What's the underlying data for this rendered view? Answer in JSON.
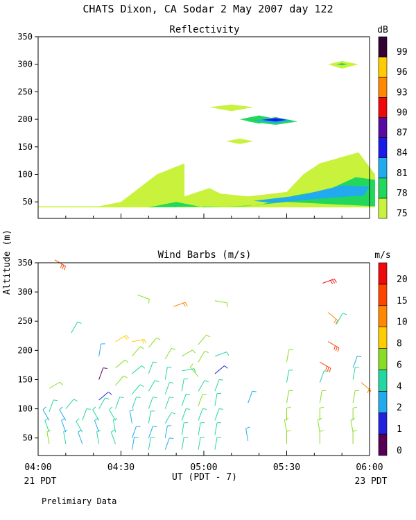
{
  "header": {
    "title": "CHATS Dixon, CA  Sodar   2 May 2007  day 122",
    "footer_note": "Prelimiary Data",
    "left_time_note": "21 PDT",
    "right_time_note": "23 PDT",
    "x_axis_title": "UT  (PDT - 7)",
    "y_axis_title": "Altitude (m)"
  },
  "chart_data": [
    {
      "type": "contour",
      "title": "Reflectivity",
      "xlabel": "UT  (PDT - 7)",
      "ylabel": "Altitude (m)",
      "x_range_utc_minutes": [
        240,
        360
      ],
      "ylim": [
        20,
        350
      ],
      "y_ticks": [
        50,
        100,
        150,
        200,
        250,
        300,
        350
      ],
      "colorbar": {
        "label": "dB",
        "levels": [
          75,
          78,
          81,
          84,
          87,
          90,
          93,
          96,
          99
        ],
        "colors": [
          "#c8f23c",
          "#22d85c",
          "#22aaee",
          "#1a1ae6",
          "#5a0aa0",
          "#ee0a0a",
          "#ff8800",
          "#ffcc00",
          "#330033"
        ]
      },
      "regions": [
        {
          "level": 75,
          "points": [
            [
              240,
              42
            ],
            [
              262,
              42
            ],
            [
              270,
              50
            ],
            [
              283,
              100
            ],
            [
              293,
              120
            ],
            [
              293,
              60
            ],
            [
              302,
              75
            ],
            [
              306,
              65
            ],
            [
              316,
              60
            ],
            [
              330,
              68
            ],
            [
              336,
              100
            ],
            [
              342,
              120
            ],
            [
              356,
              140
            ],
            [
              362,
              100
            ],
            [
              362,
              40
            ],
            [
              300,
              40
            ],
            [
              240,
              40
            ]
          ]
        },
        {
          "level": 78,
          "points": [
            [
              280,
              40
            ],
            [
              290,
              50
            ],
            [
              300,
              40
            ],
            [
              320,
              44
            ],
            [
              333,
              62
            ],
            [
              345,
              72
            ],
            [
              355,
              95
            ],
            [
              362,
              90
            ],
            [
              362,
              42
            ],
            [
              350,
              45
            ],
            [
              330,
              50
            ],
            [
              315,
              42
            ]
          ]
        },
        {
          "level": 78,
          "points": [
            [
              313,
              200
            ],
            [
              320,
              192
            ],
            [
              327,
              200
            ],
            [
              320,
              207
            ]
          ]
        },
        {
          "level": 81,
          "points": [
            [
              318,
              52
            ],
            [
              335,
              62
            ],
            [
              350,
              80
            ],
            [
              360,
              78
            ],
            [
              358,
              62
            ],
            [
              340,
              55
            ],
            [
              325,
              48
            ]
          ]
        },
        {
          "level": 78,
          "points": [
            [
              316,
              196
            ],
            [
              326,
              190
            ],
            [
              334,
              196
            ],
            [
              326,
              204
            ]
          ]
        },
        {
          "level": 81,
          "points": [
            [
              318,
              198
            ],
            [
              326,
              193
            ],
            [
              332,
              198
            ],
            [
              326,
              203
            ]
          ]
        },
        {
          "level": 84,
          "points": [
            [
              321,
              199
            ],
            [
              326,
              196
            ],
            [
              330,
              199
            ],
            [
              326,
              202
            ]
          ]
        },
        {
          "level": 75,
          "points": [
            [
              302,
              222
            ],
            [
              310,
              215
            ],
            [
              318,
              222
            ],
            [
              310,
              227
            ]
          ]
        },
        {
          "level": 75,
          "points": [
            [
              308,
              160
            ],
            [
              313,
              155
            ],
            [
              318,
              160
            ],
            [
              313,
              165
            ]
          ]
        },
        {
          "level": 75,
          "points": [
            [
              345,
              300
            ],
            [
              350,
              292
            ],
            [
              356,
              300
            ],
            [
              350,
              306
            ]
          ]
        },
        {
          "level": 78,
          "points": [
            [
              348,
              300
            ],
            [
              350,
              298
            ],
            [
              352,
              300
            ],
            [
              350,
              302
            ]
          ]
        }
      ]
    },
    {
      "type": "wind_barbs",
      "title": "Wind Barbs (m/s)",
      "xlabel": "UT  (PDT - 7)",
      "ylabel": "Altitude (m)",
      "x_ticks": [
        "04:00",
        "04:30",
        "05:00",
        "05:30",
        "06:00"
      ],
      "x_tick_minutes": [
        240,
        270,
        300,
        330,
        360
      ],
      "x_range_utc_minutes": [
        240,
        360
      ],
      "ylim": [
        20,
        350
      ],
      "y_ticks": [
        50,
        100,
        150,
        200,
        250,
        300,
        350
      ],
      "colorbar": {
        "label": "m/s",
        "levels": [
          0,
          1,
          2,
          4,
          6,
          8,
          10,
          15,
          20
        ],
        "colors": [
          "#550055",
          "#2222dd",
          "#22aaee",
          "#22d8a0",
          "#88dd22",
          "#ffcc00",
          "#ff8800",
          "#ff4400",
          "#ee0a0a"
        ]
      },
      "barbs": [
        {
          "t": 244,
          "z": 40,
          "speed": 6,
          "dir": 350
        },
        {
          "t": 244,
          "z": 60,
          "speed": 4,
          "dir": 340
        },
        {
          "t": 244,
          "z": 80,
          "speed": 3,
          "dir": 330
        },
        {
          "t": 244,
          "z": 95,
          "speed": 5,
          "dir": 20
        },
        {
          "t": 244,
          "z": 135,
          "speed": 6,
          "dir": 60
        },
        {
          "t": 246,
          "z": 355,
          "speed": 18,
          "dir": 120
        },
        {
          "t": 250,
          "z": 40,
          "speed": 5,
          "dir": 350
        },
        {
          "t": 250,
          "z": 60,
          "speed": 3,
          "dir": 340
        },
        {
          "t": 250,
          "z": 80,
          "speed": 3,
          "dir": 330
        },
        {
          "t": 250,
          "z": 100,
          "speed": 4,
          "dir": 40
        },
        {
          "t": 252,
          "z": 230,
          "speed": 5,
          "dir": 30
        },
        {
          "t": 256,
          "z": 40,
          "speed": 3,
          "dir": 340
        },
        {
          "t": 256,
          "z": 60,
          "speed": 4,
          "dir": 330
        },
        {
          "t": 256,
          "z": 80,
          "speed": 4,
          "dir": 20
        },
        {
          "t": 262,
          "z": 40,
          "speed": 5,
          "dir": 350
        },
        {
          "t": 262,
          "z": 60,
          "speed": 3,
          "dir": 340
        },
        {
          "t": 262,
          "z": 80,
          "speed": 4,
          "dir": 330
        },
        {
          "t": 262,
          "z": 100,
          "speed": 5,
          "dir": 30
        },
        {
          "t": 262,
          "z": 115,
          "speed": 1,
          "dir": 50
        },
        {
          "t": 262,
          "z": 150,
          "speed": 0.5,
          "dir": 20
        },
        {
          "t": 262,
          "z": 190,
          "speed": 3,
          "dir": 10
        },
        {
          "t": 268,
          "z": 40,
          "speed": 4,
          "dir": 340
        },
        {
          "t": 268,
          "z": 60,
          "speed": 5,
          "dir": 350
        },
        {
          "t": 268,
          "z": 80,
          "speed": 4,
          "dir": 330
        },
        {
          "t": 268,
          "z": 100,
          "speed": 5,
          "dir": 20
        },
        {
          "t": 268,
          "z": 140,
          "speed": 6,
          "dir": 40
        },
        {
          "t": 268,
          "z": 170,
          "speed": 6,
          "dir": 50
        },
        {
          "t": 268,
          "z": 215,
          "speed": 8,
          "dir": 60
        },
        {
          "t": 274,
          "z": 30,
          "speed": 3,
          "dir": 10
        },
        {
          "t": 274,
          "z": 50,
          "speed": 3,
          "dir": 20
        },
        {
          "t": 274,
          "z": 75,
          "speed": 3,
          "dir": 350
        },
        {
          "t": 274,
          "z": 100,
          "speed": 5,
          "dir": 20
        },
        {
          "t": 274,
          "z": 125,
          "speed": 5,
          "dir": 40
        },
        {
          "t": 274,
          "z": 160,
          "speed": 4,
          "dir": 50
        },
        {
          "t": 274,
          "z": 190,
          "speed": 6,
          "dir": 40
        },
        {
          "t": 274,
          "z": 215,
          "speed": 8,
          "dir": 80
        },
        {
          "t": 276,
          "z": 295,
          "speed": 6,
          "dir": 110
        },
        {
          "t": 280,
          "z": 30,
          "speed": 4,
          "dir": 10
        },
        {
          "t": 280,
          "z": 50,
          "speed": 3,
          "dir": 20
        },
        {
          "t": 280,
          "z": 75,
          "speed": 4,
          "dir": 10
        },
        {
          "t": 280,
          "z": 100,
          "speed": 5,
          "dir": 20
        },
        {
          "t": 280,
          "z": 130,
          "speed": 5,
          "dir": 30
        },
        {
          "t": 280,
          "z": 160,
          "speed": 4,
          "dir": 20
        },
        {
          "t": 280,
          "z": 205,
          "speed": 6,
          "dir": 40
        },
        {
          "t": 286,
          "z": 30,
          "speed": 3,
          "dir": 20
        },
        {
          "t": 286,
          "z": 50,
          "speed": 3,
          "dir": 10
        },
        {
          "t": 286,
          "z": 75,
          "speed": 4,
          "dir": 30
        },
        {
          "t": 286,
          "z": 100,
          "speed": 4,
          "dir": 20
        },
        {
          "t": 286,
          "z": 125,
          "speed": 5,
          "dir": 20
        },
        {
          "t": 286,
          "z": 150,
          "speed": 5,
          "dir": 10
        },
        {
          "t": 286,
          "z": 185,
          "speed": 6,
          "dir": 30
        },
        {
          "t": 289,
          "z": 275,
          "speed": 10,
          "dir": 70
        },
        {
          "t": 292,
          "z": 30,
          "speed": 5,
          "dir": 10
        },
        {
          "t": 292,
          "z": 55,
          "speed": 4,
          "dir": 10
        },
        {
          "t": 292,
          "z": 80,
          "speed": 4,
          "dir": 20
        },
        {
          "t": 292,
          "z": 105,
          "speed": 4,
          "dir": 20
        },
        {
          "t": 292,
          "z": 130,
          "speed": 4,
          "dir": 10
        },
        {
          "t": 292,
          "z": 165,
          "speed": 4,
          "dir": 80
        },
        {
          "t": 292,
          "z": 190,
          "speed": 6,
          "dir": 60
        },
        {
          "t": 298,
          "z": 30,
          "speed": 5,
          "dir": 10
        },
        {
          "t": 298,
          "z": 55,
          "speed": 5,
          "dir": 10
        },
        {
          "t": 298,
          "z": 80,
          "speed": 5,
          "dir": 20
        },
        {
          "t": 298,
          "z": 105,
          "speed": 6,
          "dir": 20
        },
        {
          "t": 298,
          "z": 130,
          "speed": 5,
          "dir": 30
        },
        {
          "t": 298,
          "z": 155,
          "speed": 6,
          "dir": 320
        },
        {
          "t": 298,
          "z": 180,
          "speed": 6,
          "dir": 30
        },
        {
          "t": 298,
          "z": 210,
          "speed": 6,
          "dir": 40
        },
        {
          "t": 304,
          "z": 30,
          "speed": 4,
          "dir": 10
        },
        {
          "t": 304,
          "z": 55,
          "speed": 4,
          "dir": 10
        },
        {
          "t": 304,
          "z": 80,
          "speed": 5,
          "dir": 20
        },
        {
          "t": 304,
          "z": 105,
          "speed": 4,
          "dir": 10
        },
        {
          "t": 304,
          "z": 130,
          "speed": 5,
          "dir": 20
        },
        {
          "t": 304,
          "z": 160,
          "speed": 1,
          "dir": 50
        },
        {
          "t": 304,
          "z": 190,
          "speed": 5,
          "dir": 70
        },
        {
          "t": 304,
          "z": 285,
          "speed": 6,
          "dir": 100
        },
        {
          "t": 316,
          "z": 45,
          "speed": 3,
          "dir": 350
        },
        {
          "t": 316,
          "z": 110,
          "speed": 3,
          "dir": 20
        },
        {
          "t": 330,
          "z": 40,
          "speed": 6,
          "dir": 0
        },
        {
          "t": 330,
          "z": 60,
          "speed": 6,
          "dir": 350
        },
        {
          "t": 330,
          "z": 80,
          "speed": 6,
          "dir": 0
        },
        {
          "t": 330,
          "z": 110,
          "speed": 6,
          "dir": 10
        },
        {
          "t": 330,
          "z": 145,
          "speed": 4,
          "dir": 10
        },
        {
          "t": 330,
          "z": 180,
          "speed": 6,
          "dir": 10
        },
        {
          "t": 342,
          "z": 40,
          "speed": 6,
          "dir": 0
        },
        {
          "t": 342,
          "z": 60,
          "speed": 6,
          "dir": 350
        },
        {
          "t": 342,
          "z": 80,
          "speed": 6,
          "dir": 0
        },
        {
          "t": 342,
          "z": 110,
          "speed": 6,
          "dir": 10
        },
        {
          "t": 342,
          "z": 145,
          "speed": 4,
          "dir": 20
        },
        {
          "t": 342,
          "z": 180,
          "speed": 15,
          "dir": 120
        },
        {
          "t": 345,
          "z": 215,
          "speed": 15,
          "dir": 120
        },
        {
          "t": 345,
          "z": 265,
          "speed": 12,
          "dir": 130
        },
        {
          "t": 343,
          "z": 315,
          "speed": 20,
          "dir": 70
        },
        {
          "t": 354,
          "z": 40,
          "speed": 6,
          "dir": 0
        },
        {
          "t": 354,
          "z": 60,
          "speed": 6,
          "dir": 350
        },
        {
          "t": 354,
          "z": 80,
          "speed": 6,
          "dir": 0
        },
        {
          "t": 354,
          "z": 110,
          "speed": 6,
          "dir": 10
        },
        {
          "t": 354,
          "z": 150,
          "speed": 4,
          "dir": 10
        },
        {
          "t": 354,
          "z": 170,
          "speed": 2,
          "dir": 20
        },
        {
          "t": 357,
          "z": 145,
          "speed": 10,
          "dir": 130
        },
        {
          "t": 348,
          "z": 245,
          "speed": 4,
          "dir": 30
        }
      ]
    }
  ]
}
